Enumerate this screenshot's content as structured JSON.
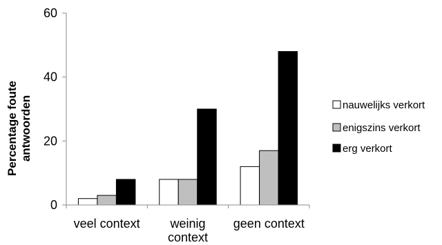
{
  "chart_data": {
    "type": "bar",
    "title": "",
    "xlabel": "",
    "ylabel": "Percentage foute antwoorden",
    "ylabel_lines": [
      "Percentage foute",
      "antwoorden"
    ],
    "ylim": [
      0,
      60
    ],
    "yticks": [
      0,
      20,
      40,
      60
    ],
    "grid": false,
    "legend_position": "right",
    "categories": [
      "veel context",
      "weinig context",
      "geen context"
    ],
    "category_lines": [
      [
        "veel context"
      ],
      [
        "weinig",
        "context"
      ],
      [
        "geen context"
      ]
    ],
    "series": [
      {
        "name": "nauwelijks verkort",
        "color": "#ffffff",
        "values": [
          2,
          8,
          12
        ]
      },
      {
        "name": "enigszins verkort",
        "color": "#bfbfbf",
        "values": [
          3,
          8,
          17
        ]
      },
      {
        "name": "erg verkort",
        "color": "#000000",
        "values": [
          8,
          30,
          48
        ]
      }
    ]
  }
}
